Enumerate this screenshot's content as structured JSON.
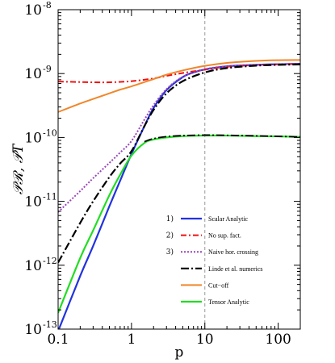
{
  "chart_data": {
    "type": "line",
    "title": "",
    "xlabel": "p",
    "ylabel": "𝒫ℛ, 𝒫T",
    "xscale": "log",
    "yscale": "log",
    "xlim": [
      0.1,
      200
    ],
    "ylim": [
      1e-13,
      1e-08
    ],
    "grid": false,
    "x_ticks": [
      {
        "value": 0.1,
        "label": "0.1"
      },
      {
        "value": 1,
        "label": "1"
      },
      {
        "value": 10,
        "label": "10"
      },
      {
        "value": 100,
        "label": "100"
      }
    ],
    "y_ticks": [
      {
        "value": 1e-13,
        "base": "10",
        "exp": "-13"
      },
      {
        "value": 1e-12,
        "base": "10",
        "exp": "-12"
      },
      {
        "value": 1e-11,
        "base": "10",
        "exp": "-11"
      },
      {
        "value": 1e-10,
        "base": "10",
        "exp": "-10"
      },
      {
        "value": 1e-09,
        "base": "10",
        "exp": "-9"
      },
      {
        "value": 1e-08,
        "base": "10",
        "exp": "-8"
      }
    ],
    "reference_line": {
      "x": 10,
      "style": "dashed",
      "color": "#999999"
    },
    "legend": {
      "position": "lower-right",
      "entries": [
        {
          "num": "1)",
          "label": "Scalar Analytic"
        },
        {
          "num": "2)",
          "label": "No sup. fact."
        },
        {
          "num": "3)",
          "label": "Naive hor. crossing"
        },
        {
          "num": "",
          "label": "Linde et al. numerics"
        },
        {
          "num": "",
          "label": "Cut−off"
        },
        {
          "num": "",
          "label": "Tensor Analytic"
        }
      ]
    },
    "series": [
      {
        "legend_index": 0,
        "color": "#2233dd",
        "dash": "",
        "width": 2.2,
        "x": [
          0.1,
          0.2,
          0.3,
          0.5,
          0.7,
          1,
          1.5,
          2,
          3,
          5,
          7,
          10,
          20,
          50,
          100,
          200
        ],
        "y": [
          9.3e-14,
          6.8e-13,
          2e-12,
          8.4e-12,
          2.1e-11,
          5.5e-11,
          1.5e-10,
          2.9e-10,
          5.5e-10,
          8.8e-10,
          1.04e-09,
          1.16e-09,
          1.3e-09,
          1.37e-09,
          1.4e-09,
          1.42e-09
        ]
      },
      {
        "legend_index": 1,
        "color": "#ee1111",
        "dash": "7 3 2 3",
        "width": 2,
        "x": [
          0.1,
          0.3,
          0.5,
          1,
          2,
          3,
          5,
          10,
          20,
          50,
          100,
          200
        ],
        "y": [
          7.5e-10,
          7.3e-10,
          7.3e-10,
          7.6e-10,
          8.4e-10,
          9.2e-10,
          1.02e-09,
          1.15e-09,
          1.28e-09,
          1.36e-09,
          1.4e-09,
          1.42e-09
        ]
      },
      {
        "legend_index": 2,
        "color": "#9944bb",
        "dash": "2 2",
        "width": 2,
        "x": [
          0.1,
          0.2,
          0.3,
          0.5,
          0.7,
          1,
          1.5,
          2,
          3,
          5,
          10,
          20,
          50,
          100,
          200
        ],
        "y": [
          6.8e-12,
          1.45e-11,
          2.3e-11,
          4e-11,
          5.8e-11,
          8.8e-11,
          1.9e-10,
          3.2e-10,
          5.7e-10,
          8.9e-10,
          1.17e-09,
          1.3e-09,
          1.37e-09,
          1.4e-09,
          1.42e-09
        ]
      },
      {
        "legend_index": 3,
        "color": "#000000",
        "dash": "10 3 2 3",
        "width": 2.2,
        "x": [
          0.1,
          0.2,
          0.3,
          0.5,
          0.7,
          1,
          1.5,
          2,
          3,
          5,
          10,
          20,
          50,
          100,
          200
        ],
        "y": [
          1.1e-12,
          4.6e-12,
          1e-11,
          2.4e-11,
          3.9e-11,
          6.1e-11,
          1.5e-10,
          2.7e-10,
          4.9e-10,
          7.6e-10,
          1.04e-09,
          1.22e-09,
          1.33e-09,
          1.37e-09,
          1.39e-09
        ]
      },
      {
        "legend_index": 4,
        "color": "#f0862a",
        "dash": "",
        "width": 2,
        "x": [
          0.1,
          0.2,
          0.3,
          0.5,
          0.7,
          1,
          2,
          3,
          5,
          10,
          20,
          50,
          100,
          200
        ],
        "y": [
          2.5e-10,
          3.4e-10,
          4e-10,
          4.9e-10,
          5.6e-10,
          6.3e-10,
          8.2e-10,
          9.6e-10,
          1.12e-09,
          1.32e-09,
          1.47e-09,
          1.58e-09,
          1.62e-09,
          1.63e-09
        ]
      },
      {
        "legend_index": 5,
        "color": "#22dd22",
        "dash": "",
        "width": 2.2,
        "x": [
          0.1,
          0.2,
          0.3,
          0.5,
          0.7,
          1,
          1.5,
          2,
          3,
          5,
          10,
          20,
          50,
          100,
          200
        ],
        "y": [
          1.8e-13,
          1.3e-12,
          3.5e-12,
          1.25e-11,
          2.6e-11,
          5.2e-11,
          8.2e-11,
          9.3e-11,
          1e-10,
          1.05e-10,
          1.07e-10,
          1.07e-10,
          1.05e-10,
          1.04e-10,
          1.02e-10
        ]
      },
      {
        "legend_index": -1,
        "color": "#000000",
        "dash": "10 3 2 3",
        "width": 1.8,
        "x": [
          1.5,
          2,
          3,
          5,
          10,
          20,
          50,
          100,
          200
        ],
        "y": [
          8.6e-11,
          9.6e-11,
          1.03e-10,
          1.07e-10,
          1.09e-10,
          1.08e-10,
          1.06e-10,
          1.04e-10,
          1.02e-10
        ]
      }
    ]
  }
}
